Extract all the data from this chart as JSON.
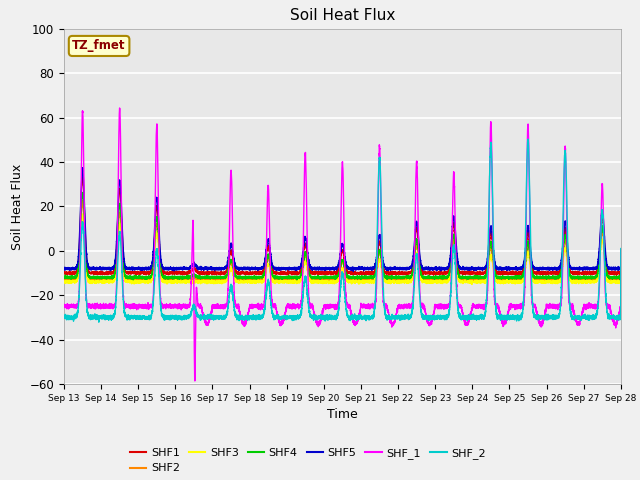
{
  "title": "Soil Heat Flux",
  "xlabel": "Time",
  "ylabel": "Soil Heat Flux",
  "ylim": [
    -60,
    100
  ],
  "xlim": [
    0,
    15
  ],
  "xtick_labels": [
    "Sep 13",
    "Sep 14",
    "Sep 15",
    "Sep 16",
    "Sep 17",
    "Sep 18",
    "Sep 19",
    "Sep 20",
    "Sep 21",
    "Sep 22",
    "Sep 23",
    "Sep 24",
    "Sep 25",
    "Sep 26",
    "Sep 27",
    "Sep 28"
  ],
  "ytick_values": [
    -60,
    -40,
    -20,
    0,
    20,
    40,
    60,
    80,
    100
  ],
  "series_colors": {
    "SHF1": "#dd0000",
    "SHF2": "#ff8800",
    "SHF3": "#ffff00",
    "SHF4": "#00cc00",
    "SHF5": "#0000cc",
    "SHF_1": "#ff00ff",
    "SHF_2": "#00cccc"
  },
  "annotation_text": "TZ_fmet",
  "annotation_bg": "#ffffcc",
  "annotation_border": "#aa8800",
  "background_color": "#e8e8e8",
  "grid_color": "#ffffff",
  "fig_facecolor": "#f0f0f0"
}
